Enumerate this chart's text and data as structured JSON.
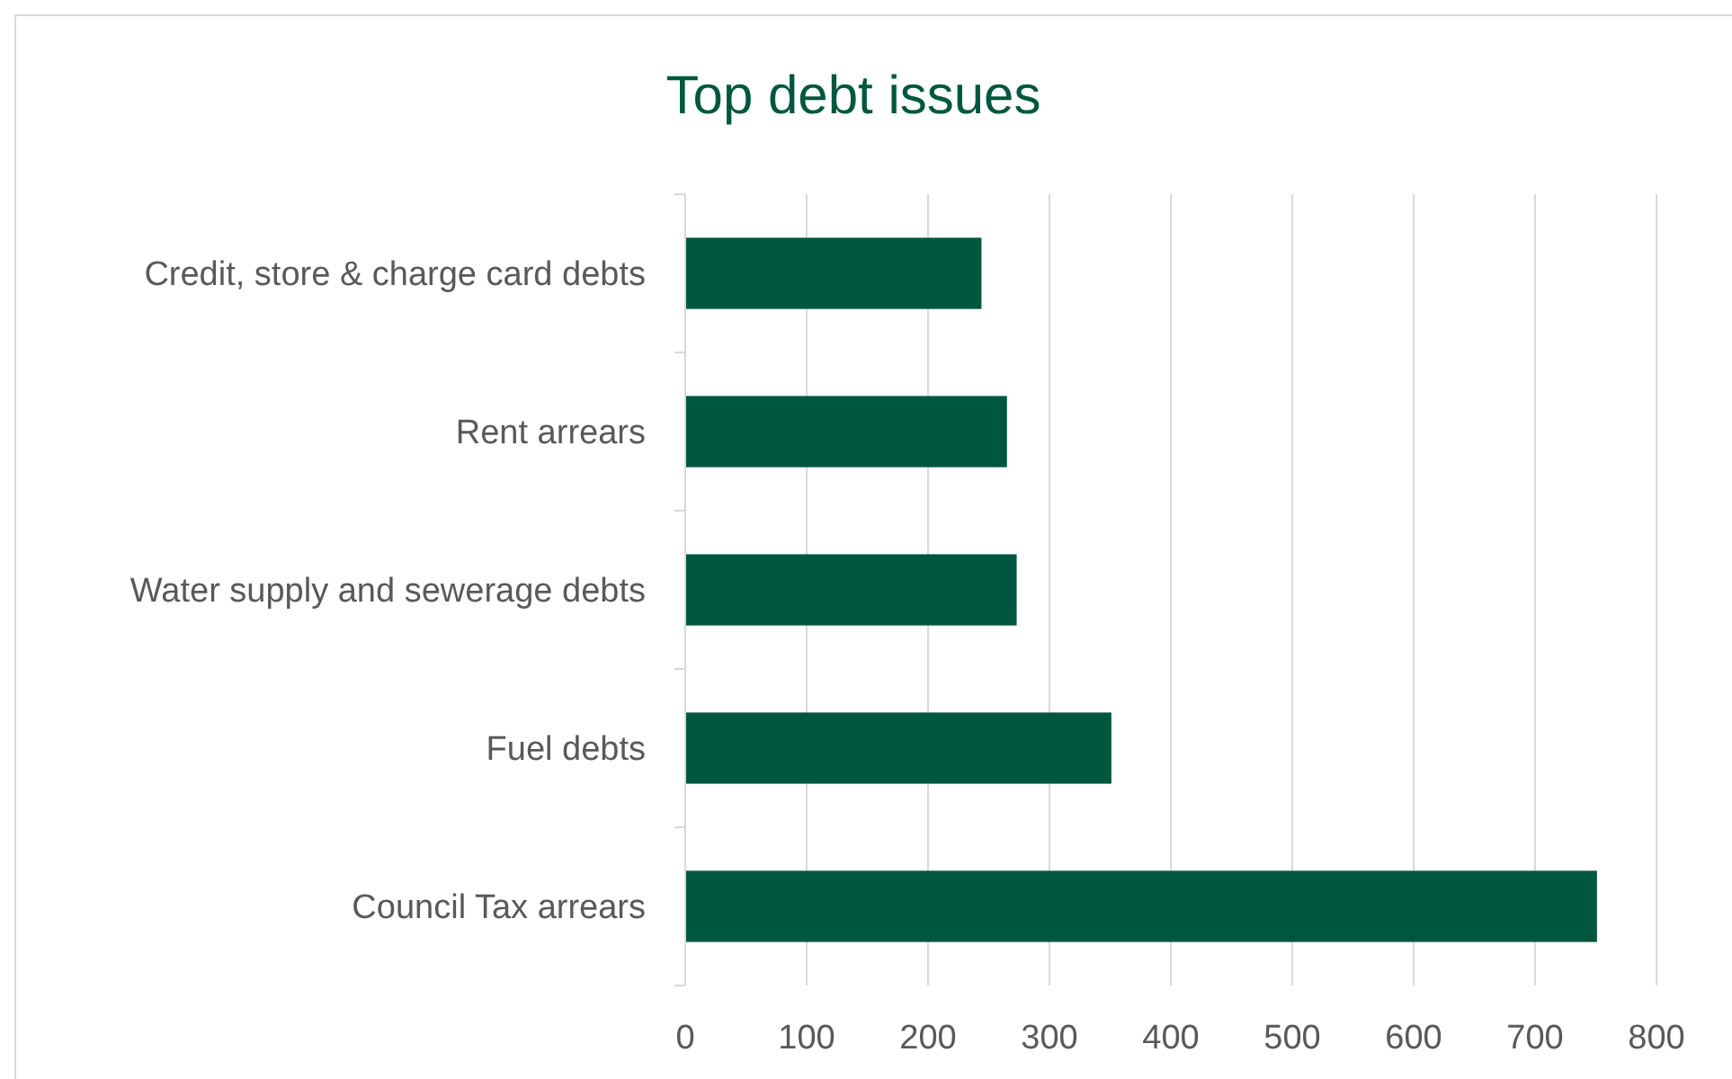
{
  "chart_data": {
    "type": "bar",
    "orientation": "horizontal",
    "title": "Top debt issues",
    "categories": [
      "Credit, store & charge card debts",
      "Rent arrears",
      "Water supply and sewerage debts",
      "Fuel debts",
      "Council Tax arrears"
    ],
    "values": [
      244,
      265,
      273,
      351,
      751
    ],
    "color": "#00573f",
    "xlim": [
      0,
      800
    ],
    "xticks": [
      0,
      100,
      200,
      300,
      400,
      500,
      600,
      700,
      800
    ],
    "grid": "x"
  }
}
